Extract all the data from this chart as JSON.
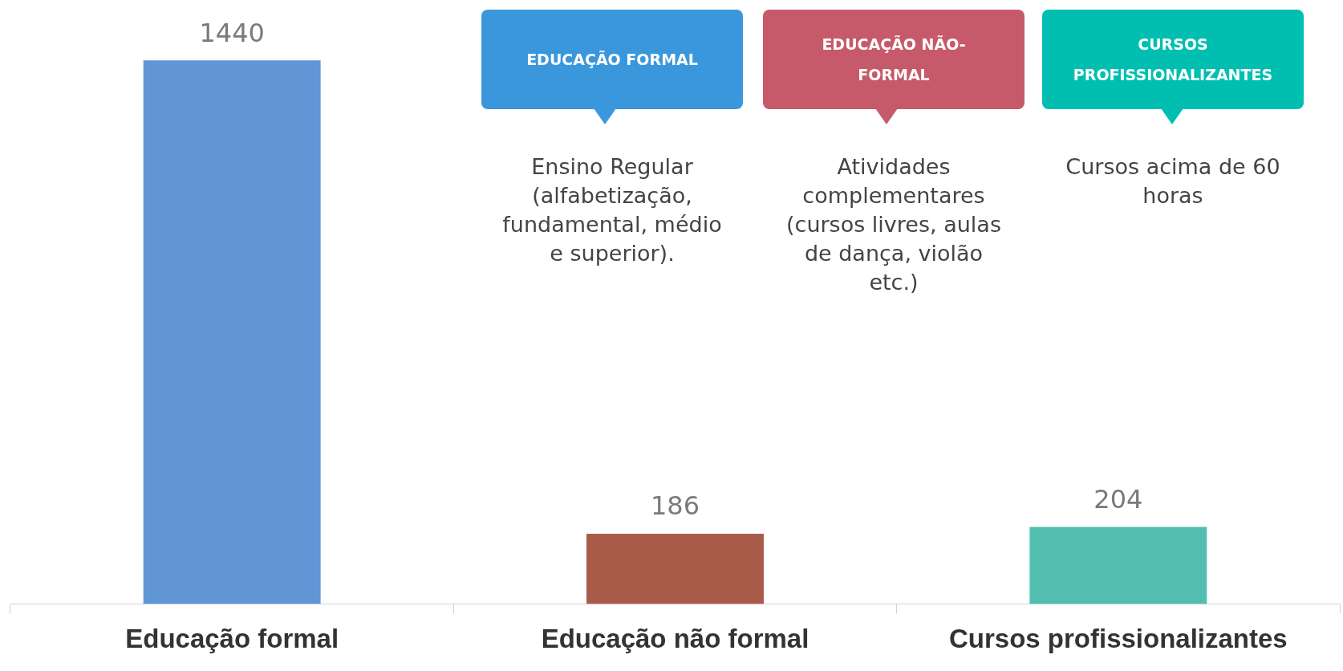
{
  "chart_data": {
    "type": "bar",
    "categories": [
      "Educação formal",
      "Educação não formal",
      "Cursos profissionalizantes"
    ],
    "values": [
      1440,
      186,
      204
    ],
    "colors": [
      "#6196d6",
      "#a95b4a",
      "#53bfb0"
    ],
    "data_labels": true,
    "grid": false,
    "legend": false,
    "tick_labels": "x",
    "annotations": [
      "EDUCAÇÃO FORMAL",
      "Ensino Regular (alfabetização, fundamental, médio e superior).",
      "EDUCAÇÃO NÃO-FORMAL",
      "Atividades complementares (cursos livres, aulas de dança, violão etc.)",
      "CURSOS PROFISSIONALIZANTES",
      "Cursos acima de 60 horas"
    ]
  }
}
